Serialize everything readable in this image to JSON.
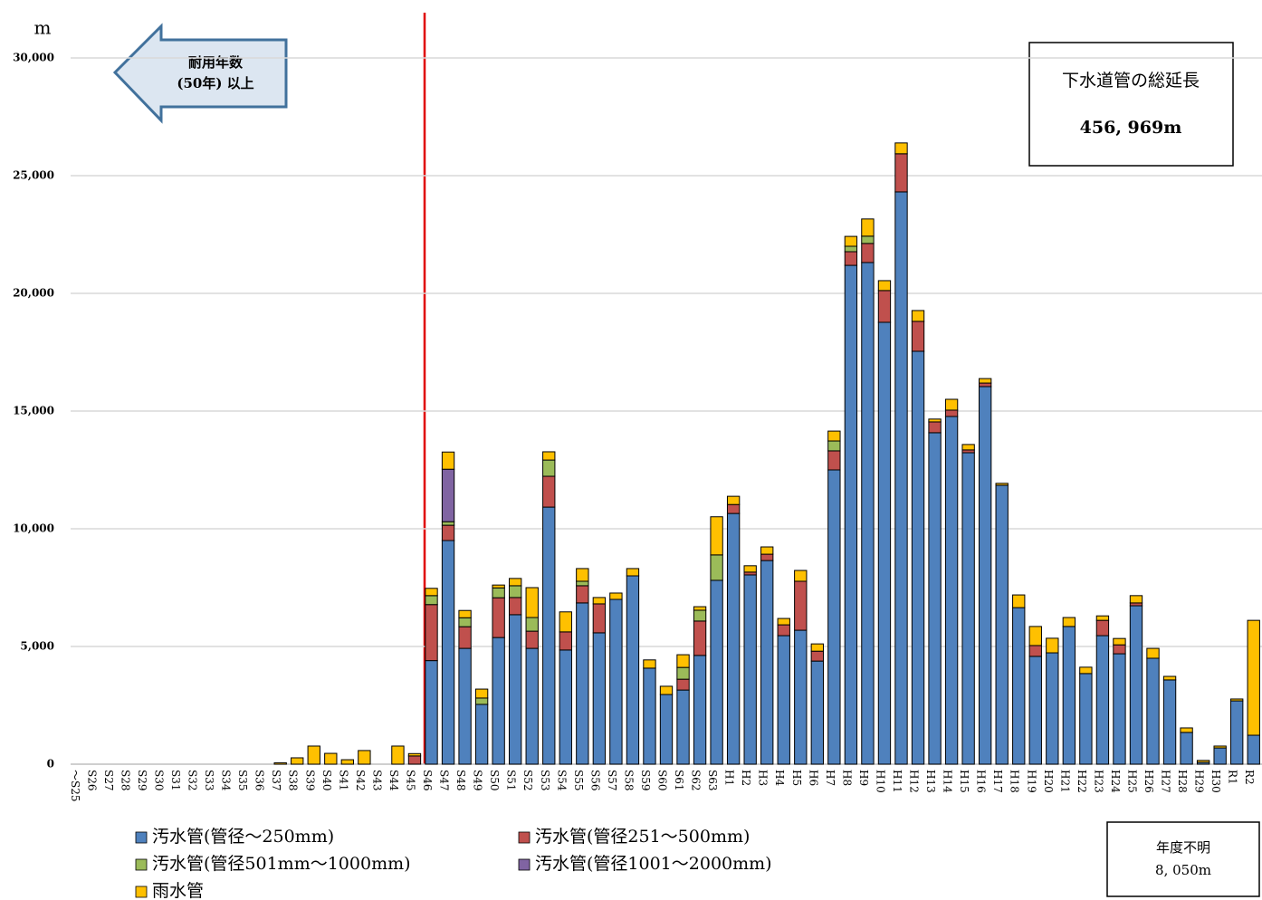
{
  "chart_data": {
    "type": "stacked-bar",
    "y_unit": "m",
    "categories": [
      "～S25",
      "S26",
      "S27",
      "S28",
      "S29",
      "S30",
      "S31",
      "S32",
      "S33",
      "S34",
      "S35",
      "S36",
      "S37",
      "S38",
      "S39",
      "S40",
      "S41",
      "S42",
      "S43",
      "S44",
      "S45",
      "S46",
      "S47",
      "S48",
      "S49",
      "S50",
      "S51",
      "S52",
      "S53",
      "S54",
      "S55",
      "S56",
      "S57",
      "S58",
      "S59",
      "S60",
      "S61",
      "S62",
      "S63",
      "H1",
      "H2",
      "H3",
      "H4",
      "H5",
      "H6",
      "H7",
      "H8",
      "H9",
      "H10",
      "H11",
      "H12",
      "H13",
      "H14",
      "H15",
      "H16",
      "H17",
      "H18",
      "H19",
      "H20",
      "H21",
      "H22",
      "H23",
      "H24",
      "H25",
      "H26",
      "H27",
      "H28",
      "H29",
      "H30",
      "R1",
      "R2"
    ],
    "series": [
      {
        "name": "汚水管(管径～250mm)",
        "color": "#4f81bd",
        "values": [
          0,
          0,
          0,
          0,
          0,
          0,
          0,
          0,
          0,
          0,
          0,
          0,
          0,
          0,
          0,
          0,
          0,
          0,
          0,
          0,
          0,
          4400,
          9500,
          4920,
          2540,
          5380,
          6350,
          4920,
          10920,
          4850,
          6850,
          5580,
          7000,
          8000,
          4080,
          2960,
          3150,
          4620,
          7810,
          10650,
          8040,
          8650,
          5460,
          5690,
          4380,
          12500,
          21190,
          21310,
          18770,
          24310,
          17540,
          14080,
          14770,
          13230,
          16040,
          11850,
          6650,
          4580,
          4730,
          5850,
          3850,
          5460,
          4690,
          6730,
          4500,
          3580,
          1350,
          80,
          690,
          2690,
          1230
        ]
      },
      {
        "name": "汚水管(管径251～500mm)",
        "color": "#c0504d",
        "values": [
          0,
          0,
          0,
          0,
          0,
          0,
          0,
          0,
          0,
          0,
          0,
          0,
          0,
          0,
          0,
          0,
          0,
          0,
          0,
          0,
          350,
          2380,
          650,
          920,
          0,
          1690,
          730,
          730,
          1310,
          770,
          730,
          1230,
          0,
          0,
          0,
          0,
          460,
          1460,
          0,
          380,
          120,
          270,
          460,
          2080,
          420,
          810,
          580,
          810,
          1350,
          1620,
          1270,
          460,
          270,
          120,
          150,
          0,
          0,
          460,
          0,
          0,
          0,
          650,
          380,
          120,
          0,
          0,
          0,
          0,
          0,
          0,
          0
        ]
      },
      {
        "name": "汚水管(管径501mm～1000mm)",
        "color": "#9bbb59",
        "values": [
          0,
          0,
          0,
          0,
          0,
          0,
          0,
          0,
          0,
          0,
          0,
          0,
          0,
          0,
          0,
          0,
          0,
          0,
          0,
          0,
          0,
          380,
          150,
          380,
          270,
          420,
          500,
          580,
          690,
          0,
          190,
          0,
          0,
          0,
          0,
          0,
          500,
          460,
          1080,
          0,
          0,
          0,
          0,
          0,
          0,
          420,
          230,
          310,
          0,
          0,
          0,
          0,
          0,
          0,
          0,
          0,
          0,
          0,
          0,
          0,
          0,
          0,
          0,
          0,
          0,
          0,
          0,
          0,
          0,
          0,
          0
        ]
      },
      {
        "name": "汚水管(管径1001～2000mm)",
        "color": "#8064a2",
        "values": [
          0,
          0,
          0,
          0,
          0,
          0,
          0,
          0,
          0,
          0,
          0,
          0,
          0,
          0,
          0,
          0,
          0,
          0,
          0,
          0,
          0,
          0,
          2230,
          0,
          0,
          0,
          0,
          0,
          0,
          0,
          0,
          0,
          0,
          0,
          0,
          0,
          0,
          0,
          0,
          0,
          0,
          0,
          0,
          0,
          0,
          0,
          0,
          0,
          0,
          0,
          0,
          0,
          0,
          0,
          0,
          0,
          0,
          0,
          0,
          0,
          0,
          0,
          0,
          0,
          0,
          0,
          0,
          0,
          0,
          0,
          0
        ]
      },
      {
        "name": "雨水管",
        "color": "#ffc000",
        "values": [
          0,
          0,
          0,
          0,
          0,
          0,
          0,
          0,
          0,
          0,
          0,
          0,
          60,
          270,
          770,
          460,
          190,
          580,
          0,
          770,
          100,
          310,
          730,
          310,
          380,
          120,
          310,
          1270,
          350,
          850,
          540,
          270,
          270,
          310,
          350,
          350,
          540,
          150,
          1620,
          350,
          270,
          310,
          270,
          460,
          310,
          420,
          420,
          730,
          420,
          460,
          460,
          120,
          460,
          230,
          190,
          80,
          540,
          810,
          620,
          380,
          270,
          190,
          270,
          310,
          420,
          150,
          190,
          80,
          80,
          80,
          4880
        ]
      }
    ],
    "ylim": [
      0,
      30000
    ],
    "yticks": [
      0,
      {
        "value": 5000,
        "label": "5,000"
      },
      {
        "value": 10000,
        "label": "10,000"
      },
      {
        "value": 15000,
        "label": "15,000"
      },
      {
        "value": 20000,
        "label": "20,000"
      },
      {
        "value": 25000,
        "label": "25,000"
      },
      {
        "value": 30000,
        "label": "30,000"
      }
    ],
    "grid": true,
    "arrow_label": [
      "耐用年数",
      "(50年) 以上"
    ],
    "total_box": [
      "下水道管の総延長",
      "456, 969m"
    ],
    "unknown_box": [
      "年度不明",
      "8, 050m"
    ]
  }
}
